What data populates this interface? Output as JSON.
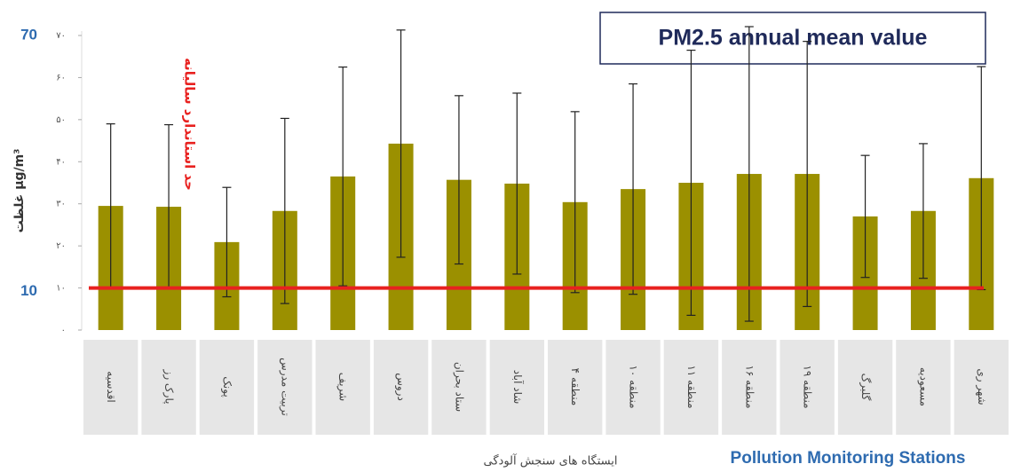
{
  "chart_data": {
    "type": "bar",
    "title": "PM2.5 annual mean value",
    "ylabel": "غلظت µg/m³",
    "xlabel": "ایستگاه های سنجش آلودگی",
    "xlabel_en": "Pollution Monitoring Stations",
    "annotations": [
      "70",
      "10"
    ],
    "categories": [
      "اقدسیه",
      "پارک رز",
      "پونک",
      "تربیت مدرس",
      "شریف",
      "دروس",
      "ستاد بحران",
      "شاد آباد",
      "منطقه ۴",
      "منطقه ۱۰",
      "منطقه ۱۱",
      "منطقه ۱۶",
      "منطقه ۱۹",
      "گلبرگ",
      "مسعودیه",
      "شهر ری"
    ],
    "values": [
      29.5,
      29.3,
      20.9,
      28.3,
      36.5,
      44.3,
      35.7,
      34.8,
      30.4,
      33.5,
      35,
      37.1,
      37.1,
      27,
      28.3,
      36.1
    ],
    "errors": [
      19.5,
      19.5,
      13,
      22,
      26,
      27,
      20,
      21.5,
      21.5,
      25,
      31.5,
      35,
      31.5,
      14.5,
      16,
      26.5
    ],
    "color": "#9b9000",
    "reference_line": {
      "value": 10,
      "label": "حد استاندارد سالیانه",
      "color": "#e8211f"
    },
    "ylim": [
      0,
      70
    ],
    "yticks": [
      {
        "value": 0,
        "label": "۰"
      },
      {
        "value": 10,
        "label": "۱۰"
      },
      {
        "value": 20,
        "label": "۲۰"
      },
      {
        "value": 30,
        "label": "۳۰"
      },
      {
        "value": 40,
        "label": "۴۰"
      },
      {
        "value": 50,
        "label": "۵۰"
      },
      {
        "value": 60,
        "label": "۶۰"
      },
      {
        "value": 70,
        "label": "۷۰"
      }
    ]
  }
}
